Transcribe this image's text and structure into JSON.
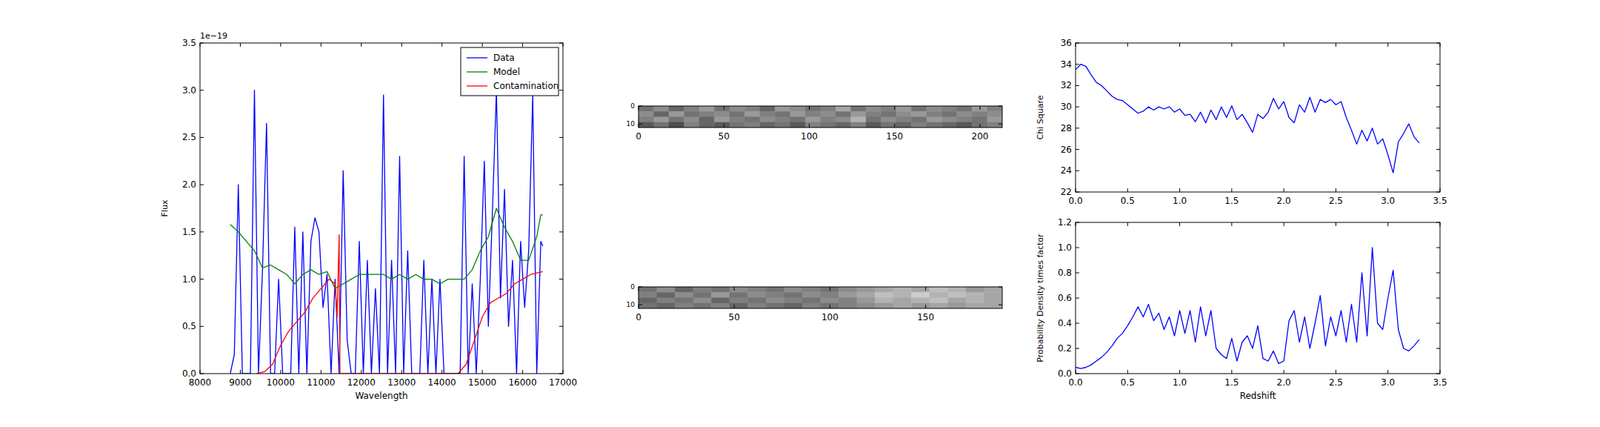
{
  "chart_data": [
    {
      "type": "line",
      "xlabel": "Wavelength",
      "ylabel": "Flux",
      "y_scale_label": "1e−19",
      "xlim": [
        8000,
        17000
      ],
      "xticks": [
        8000,
        9000,
        10000,
        11000,
        12000,
        13000,
        14000,
        15000,
        16000,
        17000
      ],
      "ylim": [
        0,
        3.5
      ],
      "yticks": [
        {
          "value": 0,
          "label": "0.0"
        },
        {
          "value": 0.5,
          "label": "0.5"
        },
        {
          "value": 1,
          "label": "1.0"
        },
        {
          "value": 1.5,
          "label": "1.5"
        },
        {
          "value": 2,
          "label": "2.0"
        },
        {
          "value": 2.5,
          "label": "2.5"
        },
        {
          "value": 3,
          "label": "3.0"
        },
        {
          "value": 3.5,
          "label": "3.5"
        }
      ],
      "grid": false,
      "legend": "upper right",
      "series": [
        {
          "name": "Data",
          "color": "#0000ff",
          "x": [
            8750,
            8850,
            8950,
            9050,
            9150,
            9250,
            9350,
            9450,
            9550,
            9650,
            9750,
            9850,
            9950,
            10050,
            10150,
            10250,
            10350,
            10450,
            10550,
            10650,
            10750,
            10850,
            10950,
            11050,
            11150,
            11250,
            11350,
            11450,
            11550,
            11650,
            11750,
            11850,
            11950,
            12050,
            12150,
            12250,
            12350,
            12450,
            12550,
            12650,
            12750,
            12850,
            12950,
            13050,
            13150,
            13250,
            13350,
            13450,
            13550,
            13650,
            13750,
            13850,
            13950,
            14050,
            14150,
            14250,
            14350,
            14450,
            14550,
            14650,
            14750,
            14850,
            14950,
            15050,
            15150,
            15250,
            15350,
            15450,
            15550,
            15650,
            15750,
            15850,
            15950,
            16050,
            16150,
            16250,
            16350,
            16450,
            16500
          ],
          "values": [
            0,
            0.2,
            2.0,
            0,
            0,
            0,
            3.0,
            0,
            1.1,
            2.65,
            0,
            0,
            1.0,
            0,
            0,
            0,
            1.55,
            0,
            1.5,
            0,
            1.4,
            1.65,
            1.5,
            0.7,
            1.05,
            0,
            1.0,
            0,
            2.15,
            0.35,
            0,
            0,
            1.4,
            0,
            1.2,
            0,
            0.9,
            0,
            2.95,
            0,
            1.2,
            0,
            2.3,
            0,
            1.3,
            0,
            0,
            0,
            1.2,
            0,
            1.0,
            0,
            1.0,
            0,
            0,
            0,
            0,
            0,
            2.3,
            0,
            0.95,
            0,
            1.0,
            2.25,
            0.5,
            1.7,
            3.0,
            0.8,
            1.95,
            0.5,
            1.2,
            0,
            1.4,
            0.7,
            1.3,
            2.95,
            0,
            1.4,
            1.35
          ]
        },
        {
          "name": "Model",
          "color": "#008000",
          "x": [
            8750,
            8950,
            9150,
            9350,
            9550,
            9750,
            9950,
            10150,
            10350,
            10550,
            10750,
            10950,
            11150,
            11350,
            11550,
            11750,
            11950,
            12150,
            12350,
            12550,
            12750,
            12950,
            13150,
            13350,
            13550,
            13750,
            13950,
            14150,
            14350,
            14550,
            14750,
            14950,
            15150,
            15350,
            15550,
            15750,
            15950,
            16150,
            16350,
            16450,
            16500
          ],
          "values": [
            1.58,
            1.5,
            1.4,
            1.3,
            1.12,
            1.15,
            1.1,
            1.05,
            0.95,
            1.05,
            1.1,
            1.05,
            1.08,
            0.9,
            0.95,
            1.0,
            1.05,
            1.05,
            1.05,
            1.05,
            1.0,
            1.05,
            1.0,
            1.05,
            1.0,
            1.0,
            0.95,
            1.0,
            1.0,
            1.0,
            1.1,
            1.3,
            1.45,
            1.75,
            1.55,
            1.4,
            1.2,
            1.2,
            1.45,
            1.68,
            1.68
          ]
        },
        {
          "name": "Contamination",
          "color": "#ff0000",
          "x": [
            9400,
            9600,
            9800,
            10000,
            10200,
            10400,
            10600,
            10800,
            11000,
            11200,
            11350,
            11400,
            11450,
            11470,
            11500,
            14400,
            14600,
            14800,
            15000,
            15200,
            15400,
            15600,
            15800,
            16000,
            16200,
            16500
          ],
          "values": [
            0,
            0.02,
            0.1,
            0.3,
            0.45,
            0.55,
            0.65,
            0.8,
            0.9,
            1.0,
            0.95,
            0.6,
            1.47,
            0,
            0,
            0,
            0.1,
            0.35,
            0.6,
            0.75,
            0.8,
            0.85,
            0.95,
            1.0,
            1.05,
            1.08
          ]
        }
      ]
    },
    {
      "type": "heatmap",
      "color": "gray",
      "xlim": [
        0,
        213
      ],
      "xticks": [
        0,
        50,
        100,
        150,
        200
      ],
      "ylim": [
        0,
        12
      ],
      "yticks": [
        0,
        10
      ],
      "cells": [
        [
          0.45,
          0.55,
          0.4,
          0.5,
          0.6,
          0.45,
          0.55,
          0.5,
          0.4,
          0.6,
          0.55,
          0.45,
          0.5,
          0.65,
          0.45,
          0.55,
          0.5,
          0.6,
          0.45,
          0.55,
          0.5,
          0.45,
          0.6,
          0.5
        ],
        [
          0.55,
          0.4,
          0.6,
          0.45,
          0.5,
          0.55,
          0.45,
          0.6,
          0.5,
          0.45,
          0.6,
          0.5,
          0.55,
          0.45,
          0.6,
          0.5,
          0.45,
          0.55,
          0.6,
          0.5,
          0.45,
          0.55,
          0.5,
          0.55
        ],
        [
          0.5,
          0.6,
          0.45,
          0.55,
          0.4,
          0.6,
          0.5,
          0.45,
          0.55,
          0.5,
          0.45,
          0.6,
          0.5,
          0.55,
          0.7,
          0.45,
          0.55,
          0.5,
          0.45,
          0.6,
          0.55,
          0.5,
          0.45,
          0.6
        ],
        [
          0.35,
          0.45,
          0.3,
          0.5,
          0.4,
          0.35,
          0.45,
          0.5,
          0.4,
          0.45,
          0.35,
          0.5,
          0.45,
          0.4,
          0.5,
          0.35,
          0.45,
          0.4,
          0.5,
          0.45,
          0.4,
          0.35,
          0.45,
          0.5
        ]
      ]
    },
    {
      "type": "heatmap",
      "color": "gray",
      "xlim": [
        0,
        190
      ],
      "xticks": [
        0,
        50,
        100,
        150
      ],
      "ylim": [
        0,
        12
      ],
      "yticks": [
        0,
        10
      ],
      "cells": [
        [
          0.45,
          0.55,
          0.4,
          0.5,
          0.45,
          0.55,
          0.5,
          0.45,
          0.55,
          0.5,
          0.45,
          0.55,
          0.6,
          0.65,
          0.7,
          0.65,
          0.75,
          0.7,
          0.6,
          0.65
        ],
        [
          0.5,
          0.4,
          0.55,
          0.45,
          0.6,
          0.45,
          0.55,
          0.5,
          0.45,
          0.55,
          0.5,
          0.6,
          0.65,
          0.75,
          0.7,
          0.8,
          0.7,
          0.75,
          0.7,
          0.65
        ],
        [
          0.4,
          0.5,
          0.45,
          0.55,
          0.4,
          0.5,
          0.45,
          0.55,
          0.5,
          0.45,
          0.55,
          0.5,
          0.6,
          0.7,
          0.65,
          0.7,
          0.75,
          0.65,
          0.7,
          0.65
        ],
        [
          0.45,
          0.4,
          0.5,
          0.45,
          0.5,
          0.4,
          0.5,
          0.45,
          0.4,
          0.5,
          0.45,
          0.5,
          0.55,
          0.6,
          0.65,
          0.6,
          0.65,
          0.6,
          0.65,
          0.65
        ]
      ]
    },
    {
      "type": "line",
      "ylabel": "Chi Square",
      "xlim": [
        0,
        3.5
      ],
      "xticks": [
        {
          "value": 0,
          "label": "0.0"
        },
        {
          "value": 0.5,
          "label": "0.5"
        },
        {
          "value": 1,
          "label": "1.0"
        },
        {
          "value": 1.5,
          "label": "1.5"
        },
        {
          "value": 2,
          "label": "2.0"
        },
        {
          "value": 2.5,
          "label": "2.5"
        },
        {
          "value": 3,
          "label": "3.0"
        },
        {
          "value": 3.5,
          "label": "3.5"
        }
      ],
      "ylim": [
        22,
        36
      ],
      "yticks": [
        22,
        24,
        26,
        28,
        30,
        32,
        34,
        36
      ],
      "grid": false,
      "series": [
        {
          "color": "#0000ff",
          "x": [
            0,
            0.05,
            0.1,
            0.15,
            0.2,
            0.25,
            0.3,
            0.35,
            0.4,
            0.45,
            0.5,
            0.55,
            0.6,
            0.65,
            0.7,
            0.75,
            0.8,
            0.85,
            0.9,
            0.95,
            1.0,
            1.05,
            1.1,
            1.15,
            1.2,
            1.25,
            1.3,
            1.35,
            1.4,
            1.45,
            1.5,
            1.55,
            1.6,
            1.65,
            1.7,
            1.75,
            1.8,
            1.85,
            1.9,
            1.95,
            2.0,
            2.05,
            2.1,
            2.15,
            2.2,
            2.25,
            2.3,
            2.35,
            2.4,
            2.45,
            2.5,
            2.55,
            2.6,
            2.65,
            2.7,
            2.75,
            2.8,
            2.85,
            2.9,
            2.95,
            3.0,
            3.05,
            3.1,
            3.15,
            3.2,
            3.25,
            3.3
          ],
          "values": [
            33.5,
            34,
            33.8,
            33,
            32.3,
            32,
            31.5,
            31,
            30.7,
            30.6,
            30.2,
            29.8,
            29.4,
            29.6,
            30,
            29.7,
            30,
            29.8,
            30,
            29.5,
            29.8,
            29.2,
            29.3,
            28.6,
            29.5,
            28.5,
            29.7,
            28.8,
            30,
            29,
            30.1,
            28.8,
            29.3,
            28.5,
            27.6,
            29.3,
            28.9,
            29.5,
            30.8,
            29.8,
            30.5,
            29,
            28.5,
            30.2,
            29.5,
            30.9,
            29.5,
            30.7,
            30.4,
            30.7,
            30.2,
            30.5,
            29,
            27.8,
            26.5,
            27.8,
            26.8,
            28,
            26.5,
            27,
            25.5,
            23.8,
            26.7,
            27.5,
            28.4,
            27.2,
            26.6
          ]
        }
      ]
    },
    {
      "type": "line",
      "xlabel": "Redshift",
      "ylabel": "Probability Density times factor",
      "xlim": [
        0,
        3.5
      ],
      "xticks": [
        {
          "value": 0,
          "label": "0.0"
        },
        {
          "value": 0.5,
          "label": "0.5"
        },
        {
          "value": 1,
          "label": "1.0"
        },
        {
          "value": 1.5,
          "label": "1.5"
        },
        {
          "value": 2,
          "label": "2.0"
        },
        {
          "value": 2.5,
          "label": "2.5"
        },
        {
          "value": 3,
          "label": "3.0"
        },
        {
          "value": 3.5,
          "label": "3.5"
        }
      ],
      "ylim": [
        0,
        1.2
      ],
      "yticks": [
        {
          "value": 0,
          "label": "0.0"
        },
        {
          "value": 0.2,
          "label": "0.2"
        },
        {
          "value": 0.4,
          "label": "0.4"
        },
        {
          "value": 0.6,
          "label": "0.6"
        },
        {
          "value": 0.8,
          "label": "0.8"
        },
        {
          "value": 1,
          "label": "1.0"
        },
        {
          "value": 1.2,
          "label": "1.2"
        }
      ],
      "grid": false,
      "series": [
        {
          "color": "#0000ff",
          "x": [
            0,
            0.05,
            0.1,
            0.15,
            0.2,
            0.25,
            0.3,
            0.35,
            0.4,
            0.45,
            0.5,
            0.55,
            0.6,
            0.65,
            0.7,
            0.75,
            0.8,
            0.85,
            0.9,
            0.95,
            1.0,
            1.05,
            1.1,
            1.15,
            1.2,
            1.25,
            1.3,
            1.35,
            1.4,
            1.45,
            1.5,
            1.55,
            1.6,
            1.65,
            1.7,
            1.75,
            1.8,
            1.85,
            1.9,
            1.95,
            2.0,
            2.05,
            2.1,
            2.15,
            2.2,
            2.25,
            2.3,
            2.35,
            2.4,
            2.45,
            2.5,
            2.55,
            2.6,
            2.65,
            2.7,
            2.75,
            2.8,
            2.85,
            2.9,
            2.95,
            3.0,
            3.05,
            3.1,
            3.15,
            3.2,
            3.25,
            3.3
          ],
          "values": [
            0.05,
            0.04,
            0.05,
            0.07,
            0.1,
            0.13,
            0.17,
            0.22,
            0.28,
            0.32,
            0.38,
            0.45,
            0.53,
            0.45,
            0.55,
            0.42,
            0.48,
            0.35,
            0.45,
            0.3,
            0.5,
            0.32,
            0.5,
            0.25,
            0.53,
            0.3,
            0.5,
            0.2,
            0.15,
            0.12,
            0.28,
            0.1,
            0.25,
            0.3,
            0.2,
            0.38,
            0.12,
            0.1,
            0.18,
            0.08,
            0.1,
            0.42,
            0.5,
            0.25,
            0.45,
            0.2,
            0.4,
            0.62,
            0.22,
            0.45,
            0.3,
            0.5,
            0.25,
            0.55,
            0.25,
            0.8,
            0.3,
            1.0,
            0.4,
            0.35,
            0.6,
            0.82,
            0.35,
            0.2,
            0.18,
            0.22,
            0.27
          ]
        }
      ]
    }
  ]
}
